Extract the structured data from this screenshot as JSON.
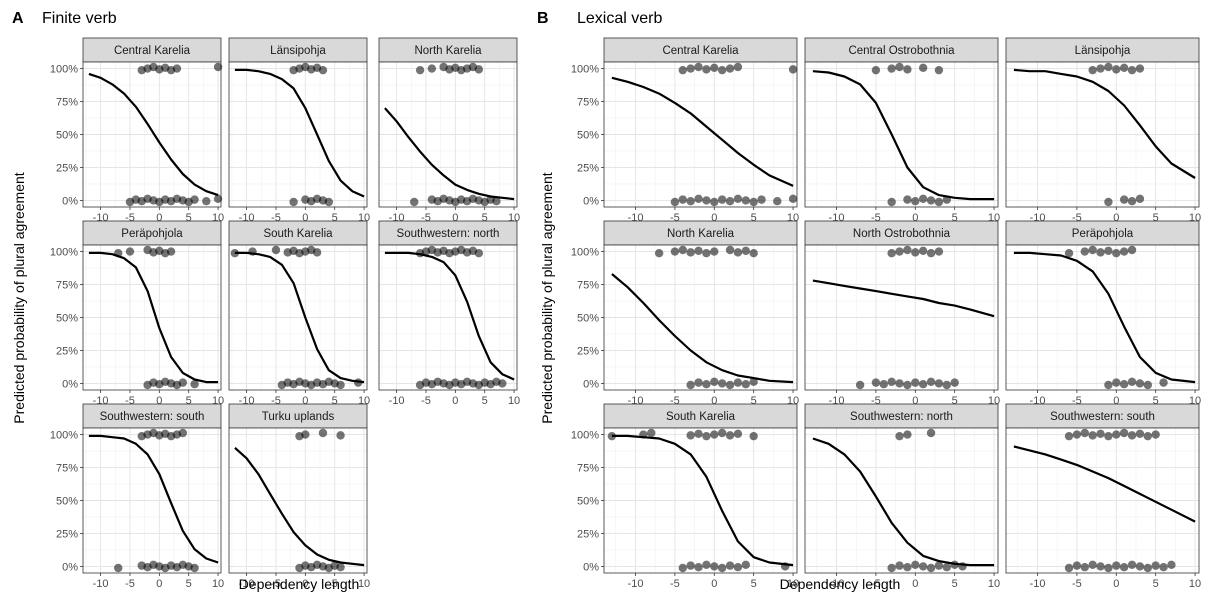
{
  "figure": {
    "panels": [
      {
        "tag": "A",
        "title": "Finite verb"
      },
      {
        "tag": "B",
        "title": "Lexical verb"
      }
    ],
    "xlabel": "Dependency length",
    "ylabel": "Predicted probability of plural agreement"
  },
  "chart_data": [
    {
      "type": "scatter",
      "panel": "A",
      "title": "Finite verb",
      "xlabel": "Dependency length",
      "ylabel": "Predicted probability of plural agreement",
      "xlim": [
        -13,
        10.5
      ],
      "ylim": [
        0,
        1
      ],
      "x_ticks": [
        "-10",
        "-5",
        "0",
        "5",
        "10"
      ],
      "y_ticks": [
        "0%",
        "25%",
        "50%",
        "75%",
        "100%"
      ],
      "grid": true,
      "facets": [
        {
          "name": "Central Karelia",
          "curve": {
            "x": [
              -12,
              -10,
              -8,
              -6,
              -4,
              -2,
              0,
              2,
              4,
              6,
              8,
              10
            ],
            "y": [
              0.96,
              0.93,
              0.88,
              0.81,
              0.71,
              0.58,
              0.44,
              0.31,
              0.2,
              0.12,
              0.07,
              0.04
            ]
          },
          "points_plural_x": [
            -3,
            -2,
            -1,
            0,
            1,
            2,
            3,
            10
          ],
          "points_singular_x": [
            -5,
            -4,
            -3,
            -2,
            -1,
            0,
            1,
            2,
            3,
            4,
            5,
            6,
            8,
            10
          ]
        },
        {
          "name": "Länsipohja",
          "curve": {
            "x": [
              -12,
              -10,
              -8,
              -6,
              -4,
              -2,
              0,
              2,
              4,
              6,
              8,
              10
            ],
            "y": [
              0.99,
              0.99,
              0.98,
              0.96,
              0.92,
              0.85,
              0.7,
              0.5,
              0.3,
              0.15,
              0.07,
              0.03
            ]
          },
          "points_plural_x": [
            -2,
            -1,
            0,
            1,
            2,
            3
          ],
          "points_singular_x": [
            -2,
            0,
            1,
            2,
            3,
            4
          ]
        },
        {
          "name": "North Karelia",
          "curve": {
            "x": [
              -12,
              -10,
              -8,
              -6,
              -4,
              -2,
              0,
              2,
              4,
              6,
              8,
              10
            ],
            "y": [
              0.7,
              0.6,
              0.48,
              0.37,
              0.27,
              0.19,
              0.12,
              0.08,
              0.05,
              0.03,
              0.02,
              0.01
            ]
          },
          "points_plural_x": [
            -6,
            -4,
            -2,
            -1,
            0,
            1,
            2,
            3,
            4
          ],
          "points_singular_x": [
            -7,
            -4,
            -3,
            -2,
            -1,
            0,
            1,
            2,
            3,
            4,
            5,
            6,
            7
          ]
        },
        {
          "name": "Peräpohjola",
          "curve": {
            "x": [
              -12,
              -10,
              -8,
              -6,
              -4,
              -2,
              0,
              2,
              4,
              6,
              8,
              10
            ],
            "y": [
              0.99,
              0.99,
              0.98,
              0.95,
              0.88,
              0.7,
              0.42,
              0.2,
              0.08,
              0.03,
              0.01,
              0.01
            ]
          },
          "points_plural_x": [
            -7,
            -5,
            -2,
            -1,
            0,
            1,
            2
          ],
          "points_singular_x": [
            -2,
            -1,
            0,
            1,
            2,
            3,
            4,
            6
          ]
        },
        {
          "name": "South Karelia",
          "curve": {
            "x": [
              -12,
              -10,
              -8,
              -6,
              -4,
              -2,
              0,
              2,
              4,
              6,
              8,
              10
            ],
            "y": [
              0.99,
              0.99,
              0.98,
              0.96,
              0.9,
              0.76,
              0.5,
              0.26,
              0.1,
              0.04,
              0.02,
              0.01
            ]
          },
          "points_plural_x": [
            -12,
            -9,
            -5,
            -3,
            -2,
            -1,
            0,
            1,
            2
          ],
          "points_singular_x": [
            -4,
            -3,
            -2,
            -1,
            0,
            1,
            2,
            3,
            4,
            5,
            6,
            9
          ]
        },
        {
          "name": "Southwestern: north",
          "curve": {
            "x": [
              -12,
              -10,
              -8,
              -6,
              -4,
              -2,
              0,
              2,
              4,
              6,
              8,
              10
            ],
            "y": [
              0.99,
              0.99,
              0.99,
              0.98,
              0.96,
              0.92,
              0.82,
              0.62,
              0.36,
              0.16,
              0.07,
              0.03
            ]
          },
          "points_plural_x": [
            -6,
            -5,
            -4,
            -3,
            -2,
            -1,
            0,
            1,
            2,
            3,
            4
          ],
          "points_singular_x": [
            -6,
            -5,
            -4,
            -3,
            -2,
            -1,
            0,
            1,
            2,
            3,
            4,
            5,
            6,
            7,
            8
          ]
        },
        {
          "name": "Southwestern: south",
          "curve": {
            "x": [
              -12,
              -10,
              -8,
              -6,
              -4,
              -2,
              0,
              2,
              4,
              6,
              8,
              10
            ],
            "y": [
              0.99,
              0.99,
              0.98,
              0.97,
              0.93,
              0.85,
              0.7,
              0.48,
              0.27,
              0.13,
              0.06,
              0.03
            ]
          },
          "points_plural_x": [
            -3,
            -2,
            -1,
            0,
            1,
            2,
            3,
            4
          ],
          "points_singular_x": [
            -7,
            -3,
            -2,
            -1,
            0,
            1,
            2,
            3,
            4,
            5,
            6
          ]
        },
        {
          "name": "Turku uplands",
          "curve": {
            "x": [
              -12,
              -10,
              -8,
              -6,
              -4,
              -2,
              0,
              2,
              4,
              6,
              8,
              10
            ],
            "y": [
              0.9,
              0.82,
              0.7,
              0.55,
              0.4,
              0.26,
              0.16,
              0.09,
              0.05,
              0.03,
              0.02,
              0.01
            ]
          },
          "points_plural_x": [
            -1,
            0,
            3,
            6
          ],
          "points_singular_x": [
            -1,
            0,
            1,
            2,
            3,
            4,
            5,
            6
          ]
        }
      ]
    },
    {
      "type": "scatter",
      "panel": "B",
      "title": "Lexical verb",
      "xlabel": "Dependency length",
      "ylabel": "Predicted probability of plural agreement",
      "xlim": [
        -14,
        10.5
      ],
      "ylim": [
        0,
        1
      ],
      "x_ticks": [
        "-10",
        "-5",
        "0",
        "5",
        "10"
      ],
      "y_ticks": [
        "0%",
        "25%",
        "50%",
        "75%",
        "100%"
      ],
      "grid": true,
      "facets": [
        {
          "name": "Central Karelia",
          "curve": {
            "x": [
              -13,
              -11,
              -9,
              -7,
              -5,
              -3,
              -1,
              1,
              3,
              5,
              7,
              10
            ],
            "y": [
              0.93,
              0.9,
              0.86,
              0.81,
              0.74,
              0.66,
              0.56,
              0.46,
              0.36,
              0.27,
              0.19,
              0.11
            ]
          },
          "points_plural_x": [
            -4,
            -3,
            -2,
            -1,
            0,
            1,
            2,
            3,
            10
          ],
          "points_singular_x": [
            -5,
            -4,
            -3,
            -2,
            -1,
            0,
            1,
            2,
            3,
            4,
            5,
            6,
            8,
            10
          ]
        },
        {
          "name": "Central Ostrobothnia",
          "curve": {
            "x": [
              -13,
              -11,
              -9,
              -7,
              -5,
              -3,
              -1,
              1,
              3,
              5,
              7,
              10
            ],
            "y": [
              0.98,
              0.97,
              0.94,
              0.88,
              0.74,
              0.5,
              0.25,
              0.1,
              0.04,
              0.02,
              0.01,
              0.01
            ]
          },
          "points_plural_x": [
            -5,
            -3,
            -2,
            -1,
            1,
            3
          ],
          "points_singular_x": [
            -3,
            -1,
            0,
            1,
            2,
            3,
            4
          ]
        },
        {
          "name": "Länsipohja",
          "curve": {
            "x": [
              -13,
              -11,
              -9,
              -7,
              -5,
              -3,
              -1,
              1,
              3,
              5,
              7,
              10
            ],
            "y": [
              0.99,
              0.98,
              0.98,
              0.96,
              0.94,
              0.9,
              0.83,
              0.72,
              0.57,
              0.41,
              0.28,
              0.17
            ]
          },
          "points_plural_x": [
            -3,
            -2,
            -1,
            0,
            1,
            2,
            3
          ],
          "points_singular_x": [
            -1,
            1,
            2,
            3
          ]
        },
        {
          "name": "North Karelia",
          "curve": {
            "x": [
              -13,
              -11,
              -9,
              -7,
              -5,
              -3,
              -1,
              1,
              3,
              5,
              7,
              10
            ],
            "y": [
              0.83,
              0.73,
              0.61,
              0.48,
              0.36,
              0.25,
              0.16,
              0.1,
              0.06,
              0.04,
              0.02,
              0.01
            ]
          },
          "points_plural_x": [
            -7,
            -5,
            -4,
            -3,
            -2,
            -1,
            0,
            2,
            3,
            4,
            5
          ],
          "points_singular_x": [
            -3,
            -2,
            -1,
            0,
            1,
            2,
            3,
            4,
            5
          ]
        },
        {
          "name": "North Ostrobothnia",
          "curve": {
            "x": [
              -13,
              -11,
              -9,
              -7,
              -5,
              -3,
              -1,
              1,
              3,
              5,
              7,
              10
            ],
            "y": [
              0.78,
              0.76,
              0.74,
              0.72,
              0.7,
              0.68,
              0.66,
              0.64,
              0.61,
              0.59,
              0.56,
              0.51
            ]
          },
          "points_plural_x": [
            -3,
            -2,
            -1,
            0,
            1,
            2,
            3
          ],
          "points_singular_x": [
            -7,
            -5,
            -4,
            -3,
            -2,
            -1,
            0,
            1,
            2,
            3,
            4,
            5
          ]
        },
        {
          "name": "Peräpohjola",
          "curve": {
            "x": [
              -13,
              -11,
              -9,
              -7,
              -5,
              -3,
              -1,
              1,
              3,
              5,
              7,
              10
            ],
            "y": [
              0.99,
              0.99,
              0.98,
              0.97,
              0.93,
              0.85,
              0.68,
              0.43,
              0.2,
              0.08,
              0.03,
              0.01
            ]
          },
          "points_plural_x": [
            -6,
            -4,
            -3,
            -2,
            -1,
            0,
            1,
            2
          ],
          "points_singular_x": [
            -1,
            0,
            1,
            2,
            3,
            4,
            6
          ]
        },
        {
          "name": "South Karelia",
          "curve": {
            "x": [
              -13,
              -11,
              -9,
              -7,
              -5,
              -3,
              -1,
              1,
              3,
              5,
              7,
              10
            ],
            "y": [
              0.99,
              0.99,
              0.98,
              0.97,
              0.93,
              0.85,
              0.68,
              0.42,
              0.19,
              0.07,
              0.03,
              0.01
            ]
          },
          "points_plural_x": [
            -13,
            -9,
            -8,
            -3,
            -2,
            -1,
            0,
            1,
            2,
            3,
            5
          ],
          "points_singular_x": [
            -4,
            -3,
            -2,
            -1,
            0,
            1,
            2,
            3,
            4,
            9
          ]
        },
        {
          "name": "Southwestern: north",
          "curve": {
            "x": [
              -13,
              -11,
              -9,
              -7,
              -5,
              -3,
              -1,
              1,
              3,
              5,
              7,
              10
            ],
            "y": [
              0.97,
              0.93,
              0.85,
              0.72,
              0.53,
              0.33,
              0.18,
              0.08,
              0.04,
              0.02,
              0.01,
              0.01
            ]
          },
          "points_plural_x": [
            -2,
            -1,
            2
          ],
          "points_singular_x": [
            -3,
            -2,
            -1,
            0,
            1,
            2,
            3,
            4,
            5,
            6
          ]
        },
        {
          "name": "Southwestern: south",
          "curve": {
            "x": [
              -13,
              -11,
              -9,
              -7,
              -5,
              -3,
              -1,
              1,
              3,
              5,
              7,
              10
            ],
            "y": [
              0.91,
              0.88,
              0.85,
              0.81,
              0.77,
              0.72,
              0.67,
              0.61,
              0.55,
              0.49,
              0.43,
              0.34
            ]
          },
          "points_plural_x": [
            -6,
            -5,
            -4,
            -3,
            -2,
            -1,
            0,
            1,
            2,
            3,
            4,
            5
          ],
          "points_singular_x": [
            -6,
            -5,
            -4,
            -3,
            -2,
            -1,
            0,
            1,
            2,
            3,
            4,
            5,
            6,
            7
          ]
        }
      ]
    }
  ]
}
